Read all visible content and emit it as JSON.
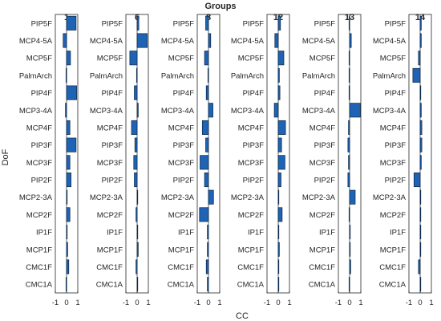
{
  "chart_data": {
    "type": "bar",
    "orientation": "horizontal",
    "title": "Groups",
    "xlabel": "CC",
    "ylabel": "DoF",
    "xlim": [
      -1,
      1
    ],
    "xticks": [
      "-1",
      "0",
      "1"
    ],
    "bar_color": "#1f63b5",
    "categories": [
      "PIP5F",
      "MCP4-5A",
      "MCP5F",
      "PalmArch",
      "PIP4F",
      "MCP3-4A",
      "MCP4F",
      "PIP3F",
      "MCP3F",
      "PIP2F",
      "MCP2-3A",
      "MCP2F",
      "IP1F",
      "MCP1F",
      "CMC1F",
      "CMC1A"
    ],
    "panels": [
      {
        "name": "1",
        "values": [
          0.85,
          -0.3,
          0.35,
          -0.05,
          0.9,
          -0.1,
          0.3,
          0.85,
          0.3,
          0.4,
          0.05,
          0.3,
          0.05,
          0.1,
          0.2,
          -0.05
        ]
      },
      {
        "name": "6",
        "values": [
          0.15,
          0.9,
          -0.65,
          -0.05,
          -0.25,
          0.1,
          -0.5,
          -0.2,
          -0.3,
          -0.25,
          0.05,
          -0.1,
          0.05,
          0.1,
          -0.1,
          0.05
        ]
      },
      {
        "name": "8",
        "values": [
          -0.25,
          0.2,
          -0.35,
          -0.05,
          -0.2,
          0.4,
          -0.55,
          -0.25,
          -0.75,
          -0.35,
          0.45,
          -0.8,
          -0.1,
          -0.1,
          -0.2,
          -0.1
        ]
      },
      {
        "name": "12",
        "values": [
          0.2,
          -0.3,
          0.5,
          0.1,
          0.15,
          -0.35,
          0.65,
          0.3,
          0.6,
          0.25,
          0.05,
          0.35,
          0.05,
          0.1,
          0.05,
          0.05
        ]
      },
      {
        "name": "13",
        "values": [
          -0.05,
          0.15,
          -0.05,
          -0.05,
          -0.05,
          0.95,
          -0.1,
          -0.15,
          -0.1,
          -0.15,
          0.5,
          -0.05,
          0.05,
          0.05,
          0.1,
          -0.05
        ]
      },
      {
        "name": "14",
        "values": [
          0.1,
          0.1,
          -0.15,
          -0.65,
          0.05,
          0.1,
          0.15,
          0.15,
          0.1,
          -0.55,
          0.05,
          0.05,
          0.05,
          0.05,
          -0.15,
          0.05
        ]
      }
    ]
  }
}
